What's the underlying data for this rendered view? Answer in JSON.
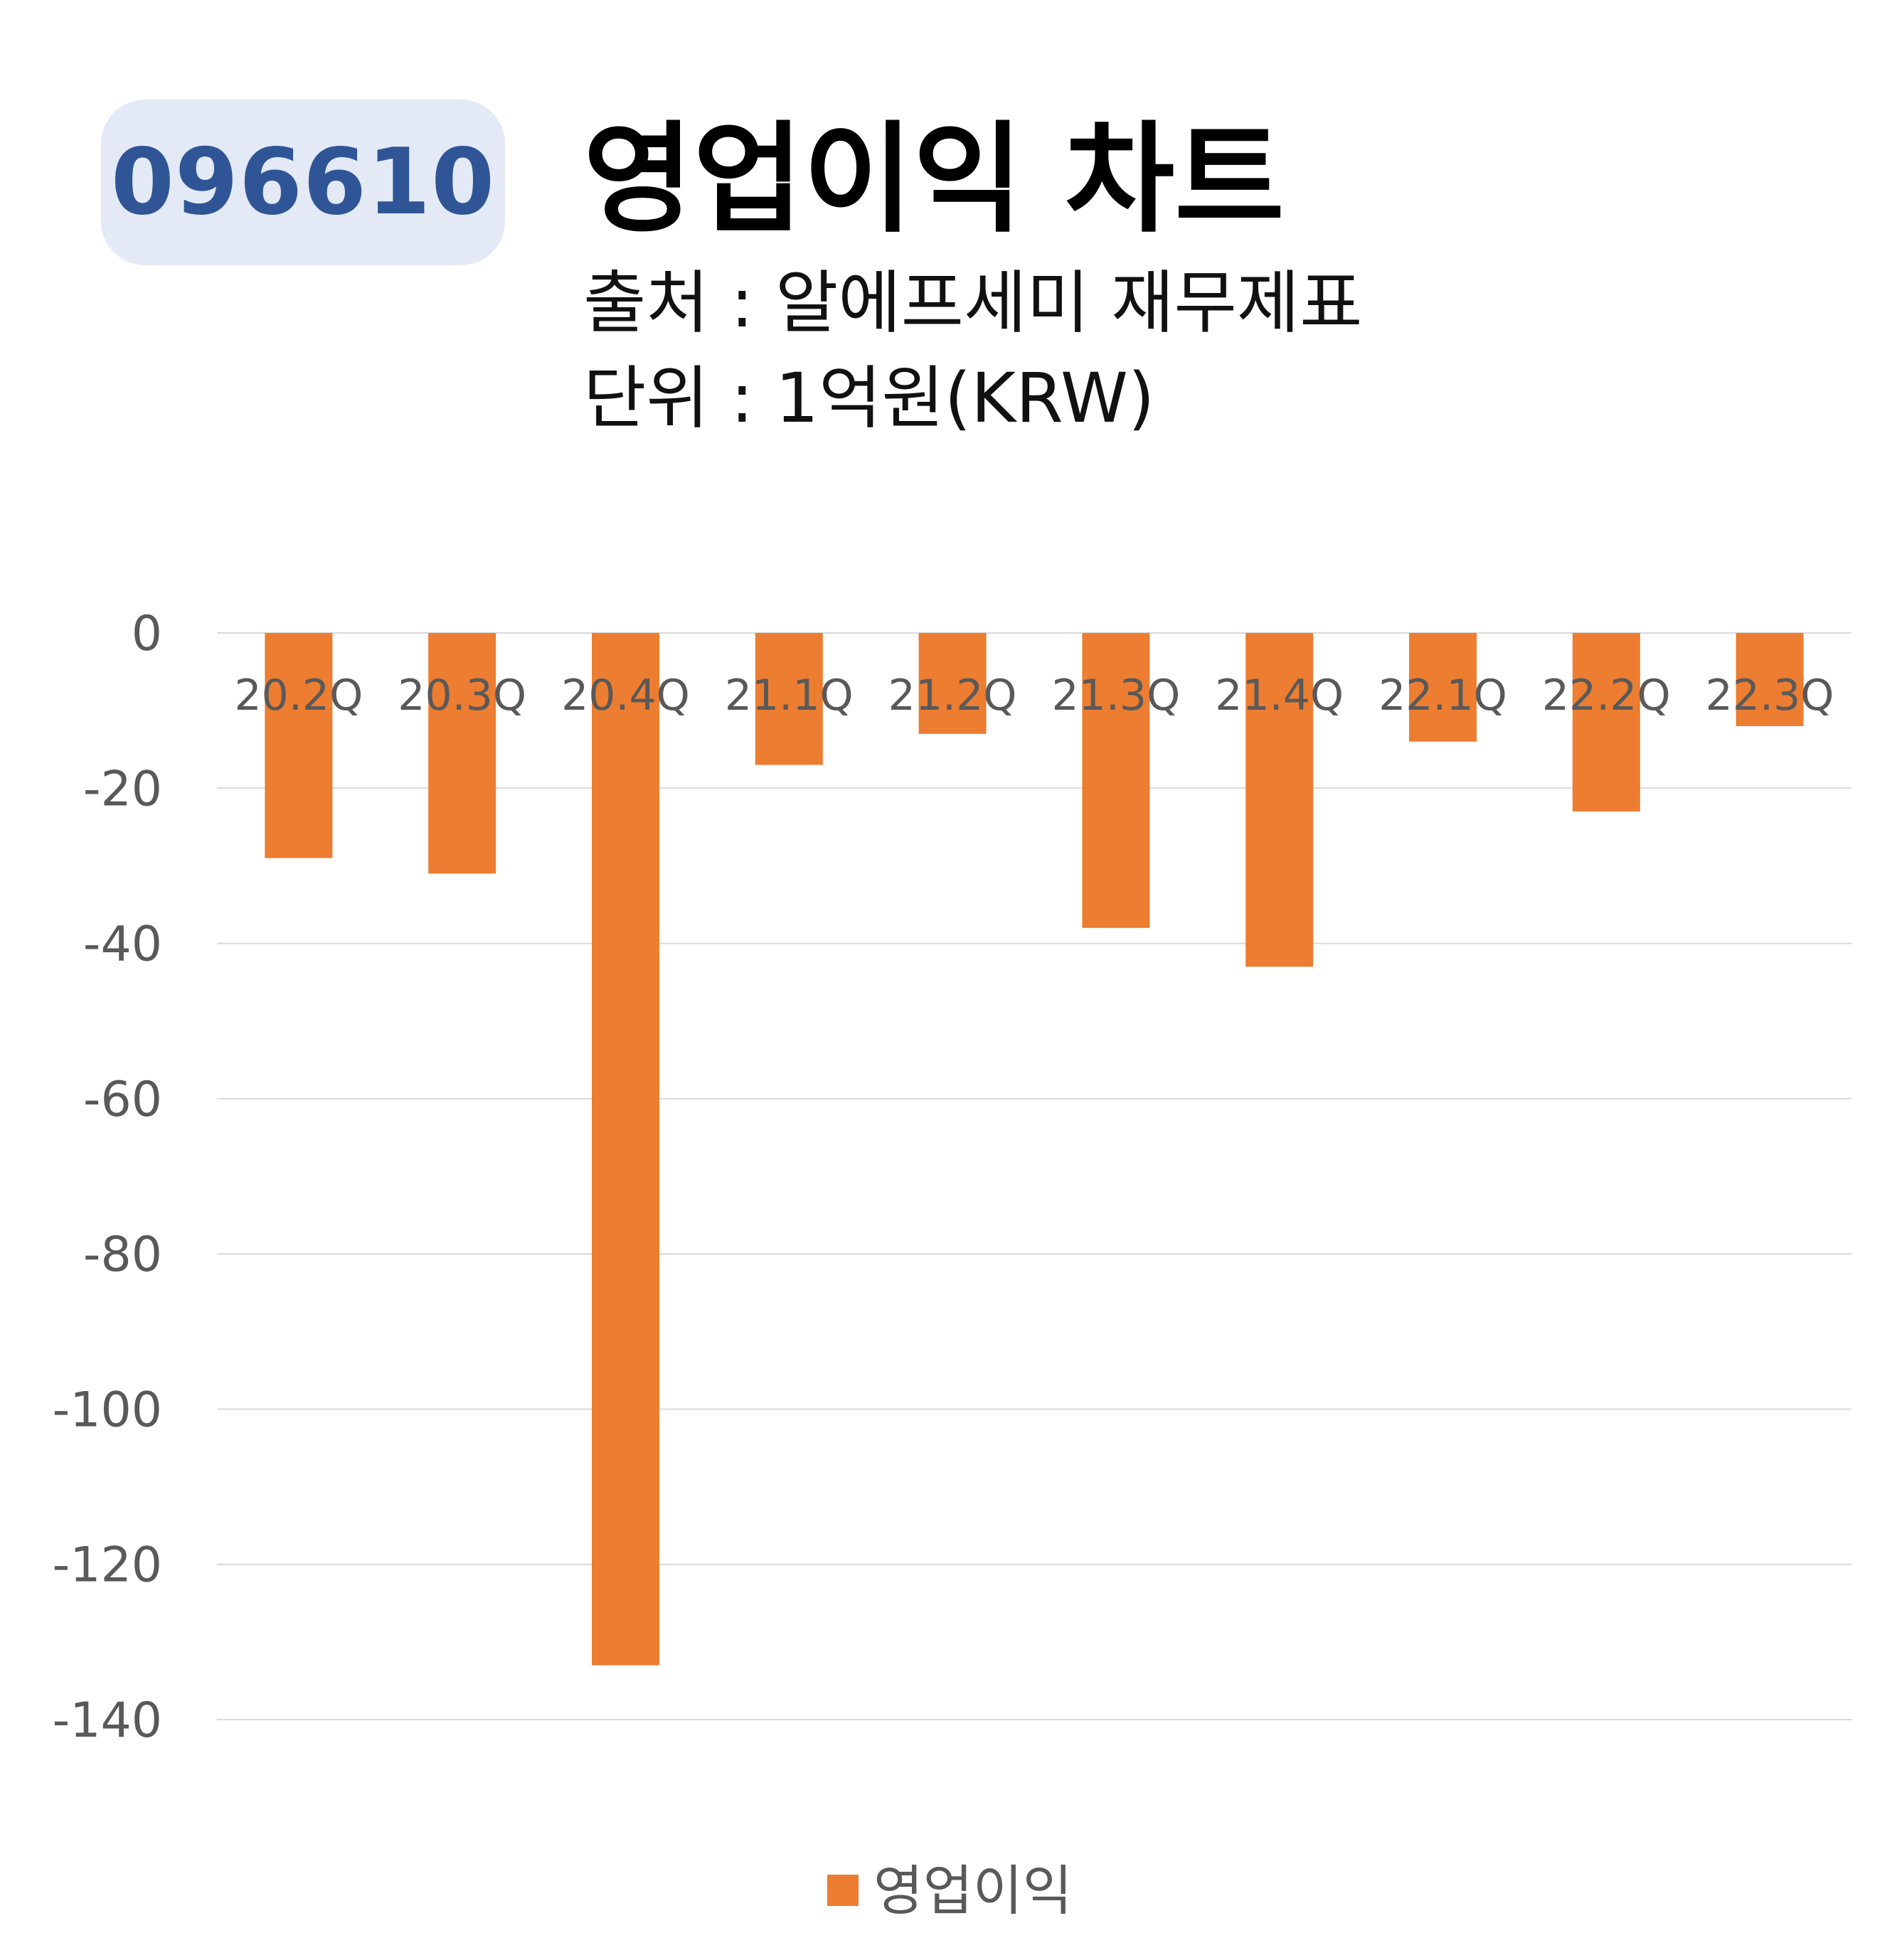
{
  "badge": {
    "ticker": "096610"
  },
  "header": {
    "title": "영업이익 차트",
    "source": "출처 : 알에프세미 재무제표",
    "unit": "단위 : 1억원(KRW)"
  },
  "colors": {
    "bar": "#ed7d31",
    "badge_bg": "#e3e9f5",
    "badge_text": "#2f5597",
    "grid": "#d9d9d9",
    "axis_text": "#595959"
  },
  "chart_data": {
    "type": "bar",
    "categories": [
      "20.2Q",
      "20.3Q",
      "20.4Q",
      "21.1Q",
      "21.2Q",
      "21.3Q",
      "21.4Q",
      "22.1Q",
      "22.2Q",
      "22.3Q"
    ],
    "series": [
      {
        "name": "영업이익",
        "values": [
          -29,
          -31,
          -133,
          -17,
          -13,
          -38,
          -43,
          -14,
          -23,
          -12
        ]
      }
    ],
    "ylim": [
      -140,
      0
    ],
    "yticks": [
      0,
      -20,
      -40,
      -60,
      -80,
      -100,
      -120,
      -140
    ],
    "grid": true,
    "legend_position": "bottom"
  }
}
